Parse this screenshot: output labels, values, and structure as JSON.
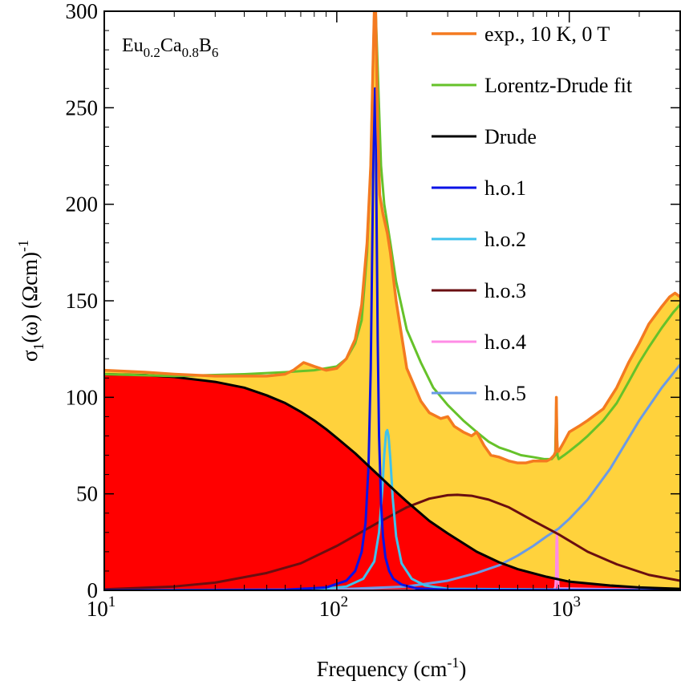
{
  "chart_data": {
    "type": "line",
    "title": "",
    "annotation": {
      "base": [
        "Eu",
        "Ca",
        "B"
      ],
      "subs": [
        "0.2",
        "0.8",
        "6"
      ]
    },
    "xlabel": {
      "main": "Frequency (cm",
      "sup": "-1",
      "end": ")"
    },
    "ylabel": {
      "main": "σ",
      "sub": "1",
      "mid": "(ω) (Ωcm)",
      "sup": "-1"
    },
    "xscale": "log",
    "xlim": [
      10,
      3000
    ],
    "ylim": [
      0,
      300
    ],
    "x_ticks": [
      {
        "value": 10,
        "base": "10",
        "exp": "1"
      },
      {
        "value": 100,
        "base": "10",
        "exp": "2"
      },
      {
        "value": 1000,
        "base": "10",
        "exp": "3"
      }
    ],
    "y_ticks": [
      {
        "value": 0,
        "label": "0"
      },
      {
        "value": 50,
        "label": "50"
      },
      {
        "value": 100,
        "label": "100"
      },
      {
        "value": 150,
        "label": "150"
      },
      {
        "value": 200,
        "label": "200"
      },
      {
        "value": 250,
        "label": "250"
      },
      {
        "value": 300,
        "label": "300"
      }
    ],
    "grid": false,
    "legend_position": "top-right",
    "fills": [
      {
        "series": "exp., 10 K, 0 T",
        "color": "#FFD23C"
      },
      {
        "series": "Drude",
        "color": "#FF0000"
      }
    ],
    "series": [
      {
        "name": "exp., 10 K, 0 T",
        "color": "#F47A20",
        "width": 3.5,
        "x": [
          10,
          15,
          20,
          30,
          40,
          50,
          60,
          65,
          72,
          80,
          90,
          100,
          110,
          120,
          128,
          135,
          140,
          143,
          145,
          146,
          147,
          148,
          150,
          153,
          158,
          165,
          170,
          180,
          200,
          230,
          250,
          280,
          300,
          320,
          350,
          380,
          400,
          430,
          460,
          500,
          550,
          600,
          650,
          700,
          760,
          800,
          830,
          860,
          875,
          880,
          885,
          890,
          900,
          950,
          1000,
          1100,
          1200,
          1400,
          1600,
          1800,
          2000,
          2200,
          2500,
          2700,
          2850,
          3000
        ],
        "y": [
          114,
          113,
          112,
          111,
          111,
          111,
          112,
          114,
          118,
          116,
          114,
          115,
          120,
          130,
          148,
          180,
          220,
          270,
          300,
          300,
          300,
          280,
          240,
          205,
          195,
          185,
          175,
          150,
          115,
          98,
          92,
          89,
          90,
          85,
          82,
          80,
          82,
          75,
          70,
          69,
          67,
          66,
          66,
          67,
          67,
          67,
          68,
          70,
          72,
          100,
          78,
          72,
          72,
          77,
          82,
          85,
          88,
          94,
          105,
          118,
          128,
          138,
          147,
          152,
          154,
          152
        ]
      },
      {
        "name": "Lorentz-Drude fit",
        "color": "#66C22A",
        "width": 3,
        "x": [
          10,
          20,
          40,
          60,
          80,
          100,
          110,
          120,
          128,
          135,
          140,
          143,
          145,
          147,
          150,
          155,
          160,
          170,
          180,
          200,
          230,
          260,
          300,
          350,
          400,
          450,
          500,
          560,
          620,
          700,
          780,
          840,
          870,
          880,
          885,
          890,
          900,
          950,
          1000,
          1100,
          1200,
          1400,
          1600,
          1800,
          2000,
          2200,
          2500,
          2800,
          3000
        ],
        "y": [
          112,
          111,
          112,
          113,
          114,
          116,
          120,
          128,
          140,
          175,
          220,
          270,
          300,
          300,
          270,
          220,
          200,
          180,
          160,
          135,
          118,
          105,
          96,
          88,
          82,
          77,
          74,
          72,
          70,
          69,
          68,
          68,
          70,
          100,
          82,
          70,
          68,
          70,
          72,
          76,
          80,
          88,
          97,
          108,
          118,
          126,
          136,
          144,
          148
        ]
      },
      {
        "name": "Drude",
        "color": "#000000",
        "width": 3,
        "x": [
          10,
          15,
          20,
          30,
          40,
          50,
          60,
          70,
          80,
          90,
          100,
          120,
          150,
          180,
          200,
          250,
          300,
          400,
          500,
          600,
          800,
          1000,
          1500,
          2000,
          3000
        ],
        "y": [
          112,
          111.5,
          110.5,
          108,
          105,
          101,
          97,
          92.5,
          88,
          83.5,
          79,
          71,
          60,
          51,
          46,
          36,
          29.5,
          20,
          14.5,
          11,
          7,
          4.5,
          2.5,
          1.5,
          0.8
        ]
      },
      {
        "name": "h.o.1",
        "color": "#0A12E6",
        "width": 3,
        "x": [
          10,
          60,
          90,
          110,
          120,
          128,
          133,
          137,
          140,
          142,
          144,
          145,
          146,
          147,
          148,
          150,
          152,
          155,
          158,
          162,
          168,
          175,
          190,
          220,
          300,
          3000
        ],
        "y": [
          0,
          0.3,
          1.5,
          5,
          10,
          20,
          35,
          65,
          115,
          175,
          235,
          258,
          260,
          245,
          205,
          130,
          80,
          45,
          28,
          17,
          10,
          6,
          3,
          1,
          0.3,
          0
        ]
      },
      {
        "name": "h.o.2",
        "color": "#3EC2EC",
        "width": 3,
        "x": [
          10,
          80,
          110,
          130,
          145,
          152,
          157,
          160,
          163,
          165,
          167,
          170,
          174,
          180,
          190,
          210,
          240,
          300,
          3000
        ],
        "y": [
          0,
          0.3,
          2,
          6,
          15,
          30,
          52,
          70,
          82,
          83,
          80,
          68,
          48,
          28,
          14,
          6,
          2.5,
          0.8,
          0
        ]
      },
      {
        "name": "h.o.3",
        "color": "#6A0E10",
        "width": 3,
        "x": [
          10,
          20,
          30,
          50,
          70,
          100,
          150,
          200,
          250,
          300,
          330,
          380,
          450,
          550,
          700,
          900,
          1200,
          1600,
          2200,
          3000
        ],
        "y": [
          0.5,
          2,
          4,
          9,
          14,
          23,
          35,
          43,
          47.5,
          49.3,
          49.5,
          49,
          47,
          43,
          36,
          29,
          20,
          13.5,
          8,
          5
        ]
      },
      {
        "name": "h.o.4",
        "color": "#FF8CE6",
        "width": 3,
        "x": [
          10,
          860,
          872,
          878,
          882,
          885,
          888,
          892,
          900,
          3000
        ],
        "y": [
          0,
          0,
          2,
          8,
          25,
          30,
          25,
          8,
          1,
          0
        ]
      },
      {
        "name": "h.o.5",
        "color": "#6A9AE6",
        "width": 3,
        "x": [
          10,
          100,
          200,
          300,
          400,
          500,
          600,
          700,
          800,
          900,
          1000,
          1200,
          1500,
          2000,
          2500,
          3000
        ],
        "y": [
          0,
          0.5,
          2,
          5,
          9,
          13,
          18,
          23,
          28,
          32,
          37,
          47,
          63,
          88,
          105,
          117
        ]
      }
    ]
  }
}
